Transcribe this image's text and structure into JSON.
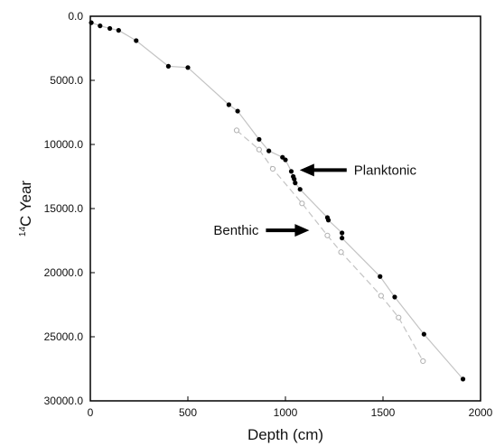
{
  "chart_data": {
    "type": "scatter",
    "title": "",
    "xlabel": "Depth (cm)",
    "ylabel_superscript": "14",
    "ylabel": "C Year",
    "xlim": [
      0,
      2000
    ],
    "ylim": [
      0,
      30000
    ],
    "y_axis_inverted": true,
    "grid": false,
    "x_ticks": [
      "0",
      "500",
      "1000",
      "1500",
      "2000"
    ],
    "y_ticks": [
      "0.0",
      "5000.0",
      "10000.0",
      "15000.0",
      "20000.0",
      "25000.0",
      "30000.0"
    ],
    "series": [
      {
        "name": "Planktonic",
        "marker": "filled-circle",
        "color": "#000000",
        "points": [
          {
            "x": 5,
            "y": 500
          },
          {
            "x": 50,
            "y": 750
          },
          {
            "x": 100,
            "y": 950
          },
          {
            "x": 145,
            "y": 1100
          },
          {
            "x": 235,
            "y": 1900
          },
          {
            "x": 400,
            "y": 3900
          },
          {
            "x": 500,
            "y": 4000
          },
          {
            "x": 710,
            "y": 6900
          },
          {
            "x": 755,
            "y": 7400
          },
          {
            "x": 865,
            "y": 9600
          },
          {
            "x": 915,
            "y": 10500
          },
          {
            "x": 985,
            "y": 11000
          },
          {
            "x": 1000,
            "y": 11200
          },
          {
            "x": 1030,
            "y": 12100
          },
          {
            "x": 1040,
            "y": 12500
          },
          {
            "x": 1045,
            "y": 12700
          },
          {
            "x": 1050,
            "y": 13000
          },
          {
            "x": 1075,
            "y": 13500
          },
          {
            "x": 1215,
            "y": 15700
          },
          {
            "x": 1220,
            "y": 15900
          },
          {
            "x": 1290,
            "y": 16900
          },
          {
            "x": 1290,
            "y": 17300
          },
          {
            "x": 1485,
            "y": 20300
          },
          {
            "x": 1560,
            "y": 21900
          },
          {
            "x": 1710,
            "y": 24800
          },
          {
            "x": 1910,
            "y": 28300
          }
        ]
      },
      {
        "name": "Benthic",
        "marker": "open-circle",
        "color": "#b0b0b0",
        "points": [
          {
            "x": 750,
            "y": 8900
          },
          {
            "x": 865,
            "y": 10400
          },
          {
            "x": 935,
            "y": 11900
          },
          {
            "x": 1085,
            "y": 14600
          },
          {
            "x": 1215,
            "y": 17100
          },
          {
            "x": 1285,
            "y": 18400
          },
          {
            "x": 1490,
            "y": 21800
          },
          {
            "x": 1580,
            "y": 23500
          },
          {
            "x": 1705,
            "y": 26900
          }
        ]
      }
    ],
    "annotations": [
      {
        "text": "Planktonic",
        "arrow_to": {
          "x": 1050,
          "y": 12000
        }
      },
      {
        "text": "Benthic",
        "arrow_to": {
          "x": 1150,
          "y": 16700
        }
      }
    ]
  }
}
